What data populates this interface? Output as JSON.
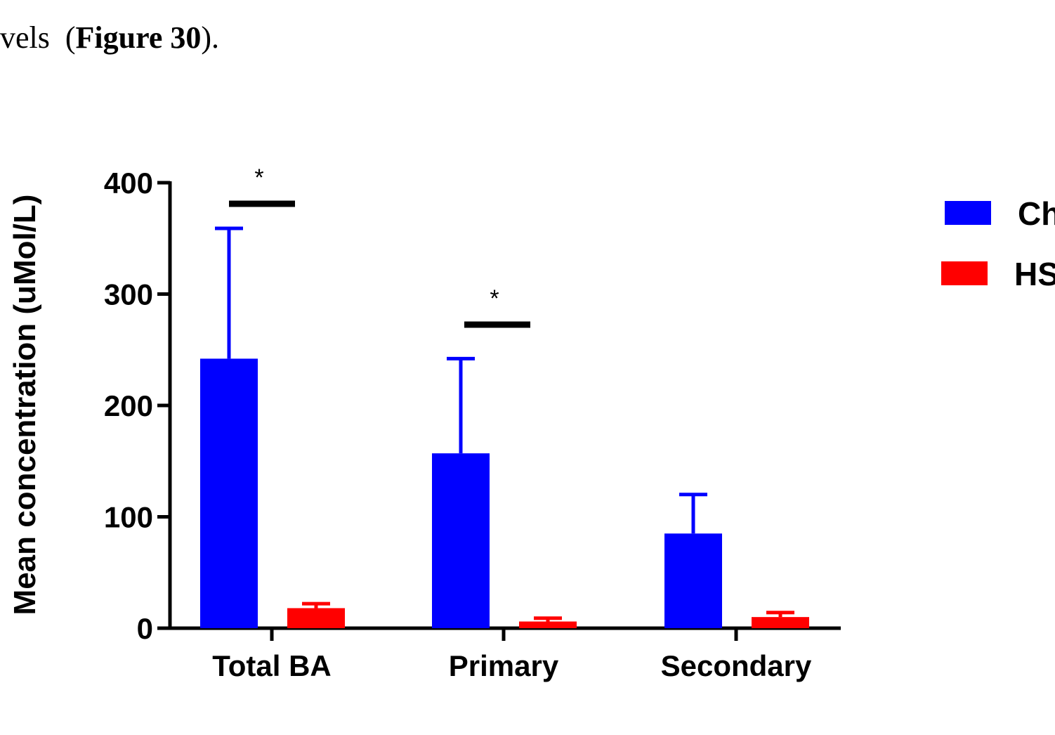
{
  "caption": {
    "prefix": "vels  (",
    "figure_ref": "Figure 30",
    "suffix": ")."
  },
  "colors": {
    "series_1": "#0000ff",
    "series_2": "#ff0000",
    "axis": "#000000"
  },
  "chart_data": {
    "type": "bar",
    "title": "",
    "xlabel": "",
    "ylabel": "Mean concentration (uMol/L)",
    "ylim": [
      0,
      400
    ],
    "yticks": [
      0,
      100,
      200,
      300,
      400
    ],
    "categories": [
      "Total BA",
      "Primary",
      "Secondary"
    ],
    "series": [
      {
        "name": "Ch",
        "color": "#0000ff",
        "values": [
          242,
          157,
          85
        ],
        "error": [
          117,
          85,
          35
        ]
      },
      {
        "name": "HS",
        "color": "#ff0000",
        "values": [
          18,
          6,
          10
        ],
        "error": [
          4,
          3,
          4
        ]
      }
    ],
    "significance": [
      {
        "category": "Total BA",
        "label": "*"
      },
      {
        "category": "Primary",
        "label": "*"
      }
    ],
    "legend_position": "right"
  }
}
